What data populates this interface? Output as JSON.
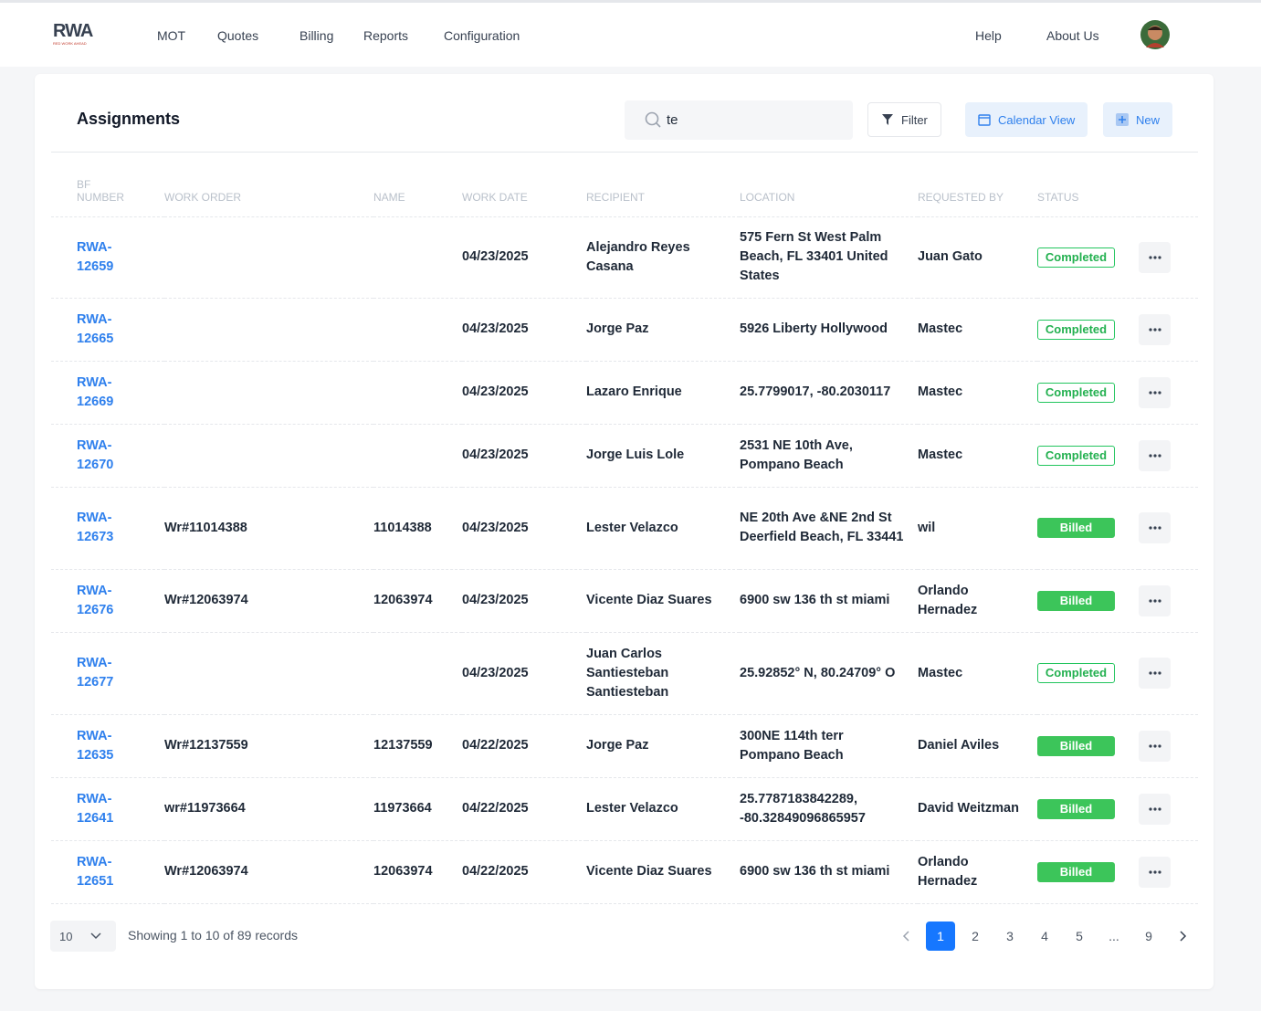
{
  "nav": {
    "logo": "RWA",
    "logo_tagline": "RED WORK AHEAD",
    "links": [
      "MOT",
      "Quotes",
      "Billing",
      "Reports",
      "Configuration"
    ],
    "right_links": [
      "Help",
      "About Us"
    ]
  },
  "header": {
    "title": "Assignments",
    "search_value": "te",
    "filter": "Filter",
    "calendar": "Calendar View",
    "new": "New"
  },
  "table": {
    "columns": [
      "BF NUMBER",
      "WORK ORDER",
      "NAME",
      "WORK DATE",
      "RECIPIENT",
      "LOCATION",
      "REQUESTED BY",
      "STATUS"
    ],
    "rows": [
      {
        "bf_number": "RWA-12659",
        "work_order": null,
        "name": null,
        "work_date": "04/23/2025",
        "recipient": "Alejandro Reyes Casana",
        "location": "575 Fern St West Palm Beach, FL 33401 United States",
        "requested_by": "Juan Gato",
        "status": "Completed",
        "status_filled": false
      },
      {
        "bf_number": "RWA-12665",
        "work_order": null,
        "name": null,
        "work_date": "04/23/2025",
        "recipient": "Jorge Paz",
        "location": "5926 Liberty Hollywood",
        "requested_by": "Mastec",
        "status": "Completed",
        "status_filled": false
      },
      {
        "bf_number": "RWA-12669",
        "work_order": null,
        "name": null,
        "work_date": "04/23/2025",
        "recipient": "Lazaro Enrique",
        "location": "25.7799017, -80.2030117",
        "requested_by": "Mastec",
        "status": "Completed",
        "status_filled": false
      },
      {
        "bf_number": "RWA-12670",
        "work_order": null,
        "name": null,
        "work_date": "04/23/2025",
        "recipient": "Jorge Luis Lole",
        "location": "2531 NE 10th Ave, Pompano Beach",
        "requested_by": "Mastec",
        "status": "Completed",
        "status_filled": false
      },
      {
        "bf_number": "RWA-12673",
        "work_order": "Wr#11014388",
        "name": "11014388",
        "work_date": "04/23/2025",
        "recipient": "Lester Velazco",
        "location": "NE 20th Ave &NE 2nd St Deerfield Beach, FL 33441",
        "requested_by": "wil",
        "status": "Billed",
        "status_filled": true
      },
      {
        "bf_number": "RWA-12676",
        "work_order": "Wr#12063974",
        "name": "12063974",
        "work_date": "04/23/2025",
        "recipient": "Vicente Diaz Suares",
        "location": "6900 sw 136 th st miami",
        "requested_by": "Orlando Hernadez",
        "status": "Billed",
        "status_filled": true
      },
      {
        "bf_number": "RWA-12677",
        "work_order": null,
        "name": null,
        "work_date": "04/23/2025",
        "recipient": "Juan Carlos Santiesteban Santiesteban",
        "location": "25.92852° N, 80.24709° O",
        "requested_by": "Mastec",
        "status": "Completed",
        "status_filled": false
      },
      {
        "bf_number": "RWA-12635",
        "work_order": "Wr#12137559",
        "name": "12137559",
        "work_date": "04/22/2025",
        "recipient": "Jorge Paz",
        "location": "300NE 114th terr Pompano Beach",
        "requested_by": "Daniel Aviles",
        "status": "Billed",
        "status_filled": true
      },
      {
        "bf_number": "RWA-12641",
        "work_order": "wr#11973664",
        "name": "11973664",
        "work_date": "04/22/2025",
        "recipient": "Lester Velazco",
        "location": "25.7787183842289, -80.32849096865957",
        "requested_by": "David Weitzman",
        "status": "Billed",
        "status_filled": true
      },
      {
        "bf_number": "RWA-12651",
        "work_order": "Wr#12063974",
        "name": "12063974",
        "work_date": "04/22/2025",
        "recipient": "Vicente Diaz Suares",
        "location": "6900 sw 136 th st miami",
        "requested_by": "Orlando Hernadez",
        "status": "Billed",
        "status_filled": true
      }
    ]
  },
  "footer": {
    "page_size": "10",
    "summary": "Showing 1 to 10 of 89 records",
    "pages": [
      "1",
      "2",
      "3",
      "4",
      "5",
      "...",
      "9"
    ]
  }
}
